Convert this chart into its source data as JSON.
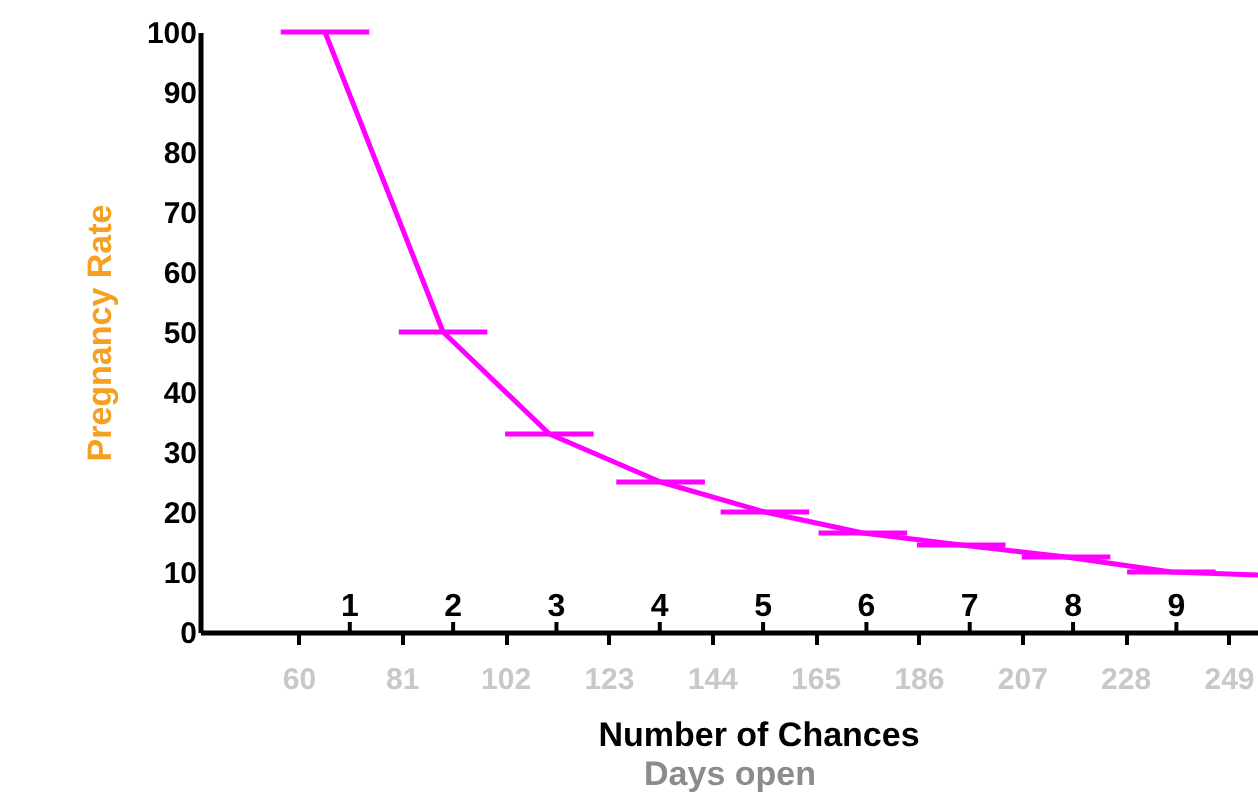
{
  "chart_data": {
    "type": "line",
    "xlabel": "Days open",
    "ylabel": "Pregnancy Rate",
    "x2label": "Number of Chances",
    "x": [
      65.4,
      89.4,
      111,
      133.6,
      154.8,
      174.7,
      194.7,
      216,
      237.4,
      255
    ],
    "series": [
      {
        "color": "#ff00ff",
        "values": [
          100,
          50,
          33,
          25,
          20,
          16.5,
          14.5,
          12.5,
          10,
          9.5
        ],
        "xerrors": [
          9,
          9,
          9,
          9,
          9,
          9,
          9,
          9,
          9,
          null
        ]
      }
    ],
    "xlim": [
      40,
      255
    ],
    "xticks": [
      60,
      81,
      102,
      123,
      144,
      165,
      186,
      207,
      228,
      249
    ],
    "x2lim": [
      -0.45,
      9.79
    ],
    "x2ticks": [
      1,
      2,
      3,
      4,
      5,
      6,
      7,
      8,
      9
    ],
    "ylim": [
      0,
      100
    ],
    "yticks": [
      0,
      10,
      20,
      30,
      40,
      50,
      60,
      70,
      80,
      90,
      100
    ],
    "grid": false,
    "marker": "none",
    "line_style": "solid"
  }
}
